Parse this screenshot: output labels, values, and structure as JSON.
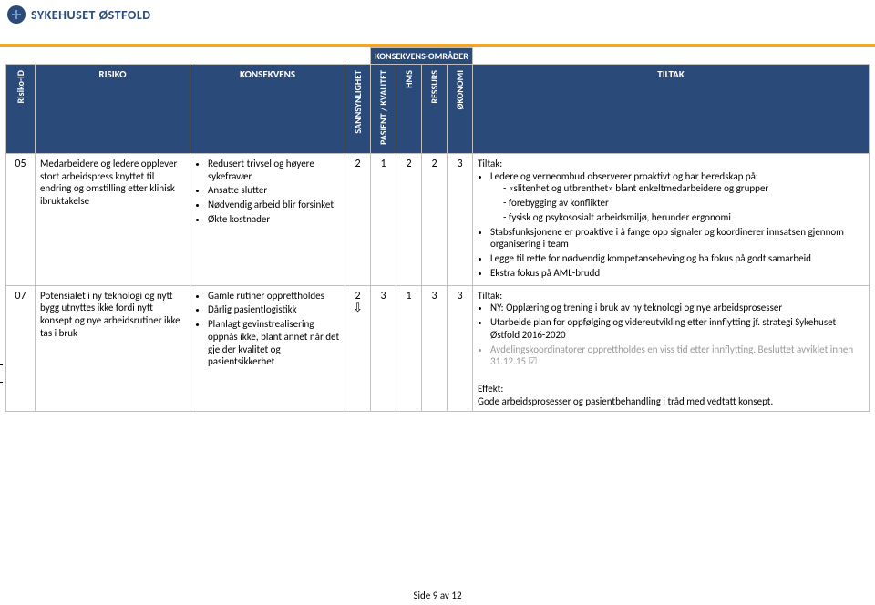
{
  "logo_text": "SYKEHUSET ØSTFOLD",
  "footer": "Side 9 av 12",
  "header": {
    "super_group": "KONSEKVENS-OMRÅDER",
    "id": "Risiko-ID",
    "risk": "RISIKO",
    "cons": "KONSEKVENS",
    "prob": "SANNSYNLIGHET",
    "pk": "PASIENT / KVALITET",
    "hms": "HMS",
    "res": "RESSURS",
    "eco": "ØKONOMI",
    "tiltak": "TILTAK"
  },
  "row1": {
    "id": "05",
    "risk": "Medarbeidere og ledere opplever stort arbeidspress knyttet til endring og omstilling etter klinisk ibruktakelse",
    "cons": [
      "Redusert trivsel og høyere sykefravær",
      "Ansatte slutter",
      "Nødvendig arbeid blir forsinket",
      "Økte kostnader"
    ],
    "scores": {
      "prob": "2",
      "pk": "1",
      "hms": "2",
      "res": "2",
      "eco": "3"
    },
    "tiltak_label": "Tiltak:",
    "tiltak": [
      "Ledere og verneombud observerer proaktivt og har beredskap på:"
    ],
    "tiltak_sub": [
      "«slitenhet og utbrenthet» blant enkeltmedarbeidere og grupper",
      "forebygging av konflikter",
      "fysisk og psykososialt arbeidsmiljø, herunder ergonomi"
    ],
    "tiltak_rest": [
      "Stabsfunksjonene er proaktive i å fange opp signaler og koordinerer innsatsen gjennom organisering i team",
      "Legge til rette for nødvendig kompetanseheving og ha fokus på godt samarbeid",
      "Ekstra fokus på AML-brudd"
    ]
  },
  "row2": {
    "id": "07",
    "risk": "Potensialet i ny teknologi og nytt bygg utnyttes ikke fordi nytt konsept og nye arbeidsrutiner ikke tas i bruk",
    "cons": [
      "Gamle rutiner opprettholdes",
      "Dårlig pasientlogistikk",
      "Planlagt gevinstrealisering oppnås ikke, blant annet når det gjelder kvalitet og pasientsikkerhet"
    ],
    "scores": {
      "prob": "2",
      "pk": "3",
      "hms": "1",
      "res": "3",
      "eco": "3"
    },
    "trend": "⇩",
    "tiltak_label": "Tiltak:",
    "tiltak": [
      "NY: Opplæring og trening i bruk av ny teknologi og nye arbeidsprosesser",
      "Utarbeide plan for oppfølging og videreutvikling etter innflytting jf. strategi Sykehuset Østfold 2016-2020"
    ],
    "tiltak_grey": "Avdelingskoordinatorer opprettholdes en viss tid etter innflytting. Besluttet avviklet innen 31.12.15 ☑",
    "effekt_label": "Effekt:",
    "effekt": "Gode arbeidsprosesser og pasientbehandling i tråd med vedtatt konsept."
  }
}
